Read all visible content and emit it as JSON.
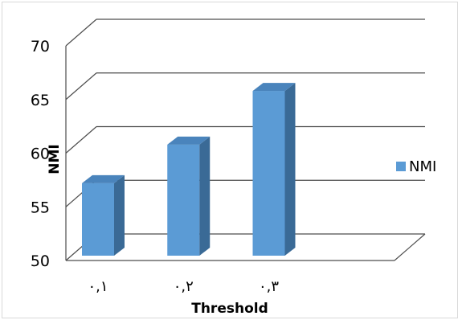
{
  "chart_data": {
    "type": "bar",
    "categories": [
      "۰,۱",
      "۰,۲",
      "۰,۳"
    ],
    "series": [
      {
        "name": "NMI",
        "values": [
          57.2,
          60.8,
          65.8
        ]
      }
    ],
    "xlabel": "Threshold",
    "ylabel": "NMI",
    "ylim": [
      50,
      70
    ],
    "yticks": [
      50,
      55,
      60,
      65,
      70
    ],
    "grid": true,
    "legend": "right",
    "colors": {
      "front": "#5b9bd5",
      "side": "#3a6a96",
      "top": "#4a84bc",
      "grid": "#4d4d4d"
    }
  }
}
